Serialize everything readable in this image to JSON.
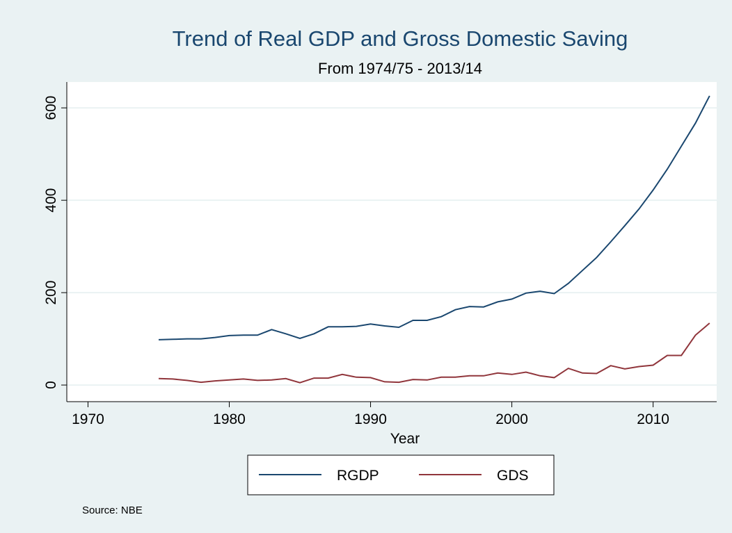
{
  "chart_data": {
    "type": "line",
    "title": "Trend of Real GDP and Gross Domestic Saving",
    "subtitle": "From 1974/75 - 2013/14",
    "x_label": "Year",
    "note": "Source: NBE",
    "x": [
      1975,
      1976,
      1977,
      1978,
      1979,
      1980,
      1981,
      1982,
      1983,
      1984,
      1985,
      1986,
      1987,
      1988,
      1989,
      1990,
      1991,
      1992,
      1993,
      1994,
      1995,
      1996,
      1997,
      1998,
      1999,
      2000,
      2001,
      2002,
      2003,
      2004,
      2005,
      2006,
      2007,
      2008,
      2009,
      2010,
      2011,
      2012,
      2013,
      2014
    ],
    "series": [
      {
        "name": "RGDP",
        "color": "#1a476f",
        "values": [
          98,
          99,
          100,
          100,
          103,
          107,
          108,
          108,
          120,
          111,
          101,
          111,
          126,
          126,
          127,
          132,
          128,
          125,
          140,
          140,
          148,
          163,
          170,
          169,
          180,
          186,
          199,
          203,
          198,
          220,
          248,
          276,
          310,
          345,
          381,
          422,
          467,
          517,
          567,
          626
        ]
      },
      {
        "name": "GDS",
        "color": "#90353b",
        "values": [
          14,
          13,
          10,
          6,
          9,
          11,
          13,
          10,
          11,
          14,
          5,
          15,
          15,
          23,
          17,
          16,
          7,
          6,
          12,
          11,
          17,
          17,
          20,
          20,
          26,
          23,
          28,
          20,
          16,
          36,
          26,
          25,
          42,
          35,
          40,
          43,
          64,
          64,
          108,
          134
        ]
      }
    ],
    "xlim": [
      1968.5,
      2014.5
    ],
    "xticks": [
      1970,
      1980,
      1990,
      2000,
      2010
    ],
    "ylim": [
      -36,
      656
    ],
    "yticks": [
      0,
      200,
      400,
      600
    ],
    "grid": true
  }
}
